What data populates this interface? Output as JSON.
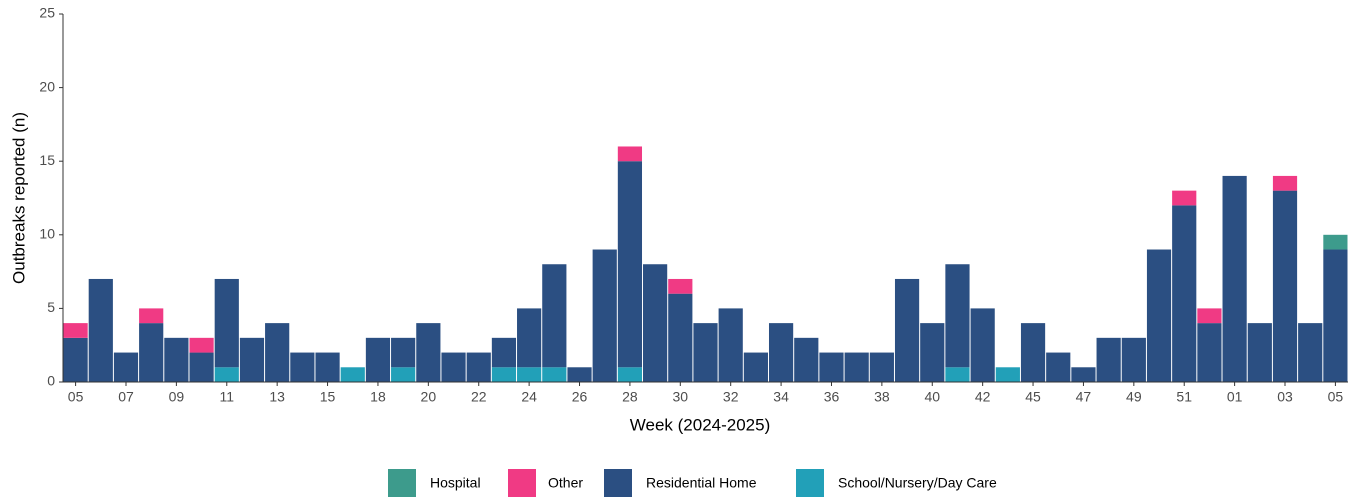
{
  "chart_data": {
    "type": "stacked-bar",
    "x_label": "Week (2024-2025)",
    "y_label": "Outbreaks reported (n)",
    "categories": [
      "05",
      null,
      "07",
      null,
      "09",
      null,
      "11",
      null,
      "13",
      null,
      "15",
      null,
      "18",
      null,
      "20",
      null,
      "22",
      null,
      "24",
      null,
      "26",
      null,
      "28",
      null,
      "30",
      null,
      "32",
      null,
      "34",
      null,
      "36",
      null,
      "38",
      null,
      "40",
      null,
      "42",
      null,
      "45",
      null,
      "47",
      null,
      "49",
      null,
      "51",
      null,
      "01",
      null,
      "03",
      null,
      "05"
    ],
    "series": [
      {
        "name": "School/Nursery/Day Care",
        "color": "#22a0b8",
        "values": [
          0,
          0,
          0,
          0,
          0,
          0,
          1,
          0,
          0,
          0,
          0,
          1,
          0,
          1,
          0,
          0,
          0,
          1,
          1,
          1,
          0,
          0,
          1,
          0,
          0,
          0,
          0,
          0,
          0,
          0,
          0,
          0,
          0,
          0,
          0,
          1,
          0,
          1,
          0,
          0,
          0,
          0,
          0,
          0,
          0,
          0,
          0,
          0,
          0,
          0,
          0
        ]
      },
      {
        "name": "Residential Home",
        "color": "#2b4f82",
        "values": [
          3,
          7,
          2,
          4,
          3,
          2,
          6,
          3,
          4,
          2,
          2,
          0,
          3,
          2,
          4,
          2,
          2,
          2,
          4,
          7,
          1,
          9,
          14,
          8,
          6,
          4,
          5,
          2,
          4,
          3,
          2,
          2,
          2,
          7,
          4,
          7,
          5,
          0,
          4,
          2,
          1,
          3,
          3,
          9,
          12,
          4,
          14,
          4,
          13,
          4,
          9
        ]
      },
      {
        "name": "Other",
        "color": "#f03a84",
        "values": [
          1,
          0,
          0,
          1,
          0,
          1,
          0,
          0,
          0,
          0,
          0,
          0,
          0,
          0,
          0,
          0,
          0,
          0,
          0,
          0,
          0,
          0,
          1,
          0,
          1,
          0,
          0,
          0,
          0,
          0,
          0,
          0,
          0,
          0,
          0,
          0,
          0,
          0,
          0,
          0,
          0,
          0,
          0,
          0,
          1,
          1,
          0,
          0,
          1,
          0,
          0
        ]
      },
      {
        "name": "Hospital",
        "color": "#3d9b8c",
        "values": [
          0,
          0,
          0,
          0,
          0,
          0,
          0,
          0,
          0,
          0,
          0,
          0,
          0,
          0,
          0,
          0,
          0,
          0,
          0,
          0,
          0,
          0,
          0,
          0,
          0,
          0,
          0,
          0,
          0,
          0,
          0,
          0,
          0,
          0,
          0,
          0,
          0,
          0,
          0,
          0,
          0,
          0,
          0,
          0,
          0,
          0,
          0,
          0,
          0,
          0,
          1
        ]
      }
    ],
    "legend_order": [
      3,
      2,
      1,
      0
    ],
    "ylim": [
      0,
      25
    ],
    "yticks": [
      0,
      5,
      10,
      15,
      20,
      25
    ]
  }
}
